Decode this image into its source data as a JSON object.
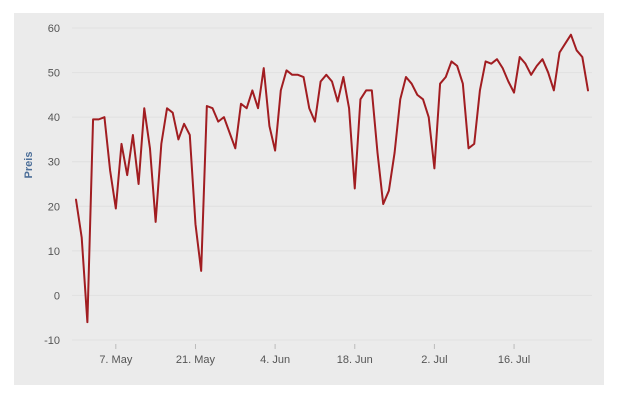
{
  "chart_data": {
    "type": "line",
    "title": "",
    "xlabel": "",
    "ylabel": "Preis",
    "ylim": [
      -10,
      60
    ],
    "xlim": [
      "2018-04-30",
      "2018-07-29"
    ],
    "grid": true,
    "legend": "none",
    "line_color": "#a11d21",
    "y_ticks": [
      60,
      50,
      40,
      30,
      20,
      10,
      0,
      -10
    ],
    "x_ticks": [
      {
        "date": "2018-05-07",
        "label": "7. May"
      },
      {
        "date": "2018-05-21",
        "label": "21. May"
      },
      {
        "date": "2018-06-04",
        "label": "4. Jun"
      },
      {
        "date": "2018-06-18",
        "label": "18. Jun"
      },
      {
        "date": "2018-07-02",
        "label": "2. Jul"
      },
      {
        "date": "2018-07-16",
        "label": "16. Jul"
      }
    ],
    "series": [
      {
        "points": [
          [
            "2018-04-30",
            21.5
          ],
          [
            "2018-05-01",
            13
          ],
          [
            "2018-05-02",
            -6
          ],
          [
            "2018-05-03",
            39.5
          ],
          [
            "2018-05-04",
            39.5
          ],
          [
            "2018-05-05",
            40
          ],
          [
            "2018-05-06",
            28
          ],
          [
            "2018-05-07",
            19.5
          ],
          [
            "2018-05-08",
            34
          ],
          [
            "2018-05-09",
            27
          ],
          [
            "2018-05-10",
            36
          ],
          [
            "2018-05-11",
            25
          ],
          [
            "2018-05-12",
            42
          ],
          [
            "2018-05-13",
            33
          ],
          [
            "2018-05-14",
            16.5
          ],
          [
            "2018-05-15",
            34
          ],
          [
            "2018-05-16",
            42
          ],
          [
            "2018-05-17",
            41
          ],
          [
            "2018-05-18",
            35
          ],
          [
            "2018-05-19",
            38.5
          ],
          [
            "2018-05-20",
            36
          ],
          [
            "2018-05-21",
            16
          ],
          [
            "2018-05-22",
            5.5
          ],
          [
            "2018-05-23",
            42.5
          ],
          [
            "2018-05-24",
            42
          ],
          [
            "2018-05-25",
            39
          ],
          [
            "2018-05-26",
            40
          ],
          [
            "2018-05-27",
            36.5
          ],
          [
            "2018-05-28",
            33
          ],
          [
            "2018-05-29",
            43
          ],
          [
            "2018-05-30",
            42
          ],
          [
            "2018-05-31",
            46
          ],
          [
            "2018-06-01",
            42
          ],
          [
            "2018-06-02",
            51
          ],
          [
            "2018-06-03",
            38
          ],
          [
            "2018-06-04",
            32.5
          ],
          [
            "2018-06-05",
            46
          ],
          [
            "2018-06-06",
            50.5
          ],
          [
            "2018-06-07",
            49.5
          ],
          [
            "2018-06-08",
            49.5
          ],
          [
            "2018-06-09",
            49
          ],
          [
            "2018-06-10",
            42
          ],
          [
            "2018-06-11",
            39
          ],
          [
            "2018-06-12",
            48
          ],
          [
            "2018-06-13",
            49.5
          ],
          [
            "2018-06-14",
            48
          ],
          [
            "2018-06-15",
            43.5
          ],
          [
            "2018-06-16",
            49
          ],
          [
            "2018-06-17",
            42
          ],
          [
            "2018-06-18",
            24
          ],
          [
            "2018-06-19",
            44
          ],
          [
            "2018-06-20",
            46
          ],
          [
            "2018-06-21",
            46
          ],
          [
            "2018-06-22",
            32
          ],
          [
            "2018-06-23",
            20.5
          ],
          [
            "2018-06-24",
            23.5
          ],
          [
            "2018-06-25",
            32
          ],
          [
            "2018-06-26",
            44
          ],
          [
            "2018-06-27",
            49
          ],
          [
            "2018-06-28",
            47.5
          ],
          [
            "2018-06-29",
            45
          ],
          [
            "2018-06-30",
            44
          ],
          [
            "2018-07-01",
            40
          ],
          [
            "2018-07-02",
            28.5
          ],
          [
            "2018-07-03",
            47.5
          ],
          [
            "2018-07-04",
            49
          ],
          [
            "2018-07-05",
            52.5
          ],
          [
            "2018-07-06",
            51.5
          ],
          [
            "2018-07-07",
            47.5
          ],
          [
            "2018-07-08",
            33
          ],
          [
            "2018-07-09",
            34
          ],
          [
            "2018-07-10",
            46
          ],
          [
            "2018-07-11",
            52.5
          ],
          [
            "2018-07-12",
            52
          ],
          [
            "2018-07-13",
            53
          ],
          [
            "2018-07-14",
            51
          ],
          [
            "2018-07-15",
            48
          ],
          [
            "2018-07-16",
            45.5
          ],
          [
            "2018-07-17",
            53.5
          ],
          [
            "2018-07-18",
            52
          ],
          [
            "2018-07-19",
            49.5
          ],
          [
            "2018-07-20",
            51.5
          ],
          [
            "2018-07-21",
            53
          ],
          [
            "2018-07-22",
            50
          ],
          [
            "2018-07-23",
            46
          ],
          [
            "2018-07-24",
            54.5
          ],
          [
            "2018-07-25",
            56.5
          ],
          [
            "2018-07-26",
            58.5
          ],
          [
            "2018-07-27",
            55
          ],
          [
            "2018-07-28",
            53.5
          ],
          [
            "2018-07-29",
            46
          ]
        ]
      }
    ]
  }
}
